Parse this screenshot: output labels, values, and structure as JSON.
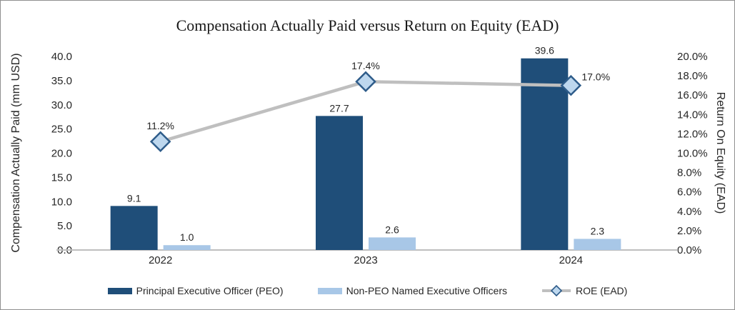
{
  "chart_data": {
    "type": "combo_bar_line",
    "title": "Compensation Actually Paid versus Return on Equity (EAD)",
    "categories": [
      "2022",
      "2023",
      "2024"
    ],
    "series": [
      {
        "name": "Principal Executive Officer (PEO)",
        "chart_type": "bar",
        "axis": "left",
        "color": "#1F4E79",
        "values": [
          9.1,
          27.7,
          39.6
        ],
        "data_labels": [
          "9.1",
          "27.7",
          "39.6"
        ]
      },
      {
        "name": "Non-PEO Named Executive Officers",
        "chart_type": "bar",
        "axis": "left",
        "color": "#A8C7E7",
        "values": [
          1.0,
          2.6,
          2.3
        ],
        "data_labels": [
          "1.0",
          "2.6",
          "2.3"
        ]
      },
      {
        "name": "ROE (EAD)",
        "chart_type": "line",
        "axis": "right",
        "line_color": "#BFBFBF",
        "marker_fill": "#BDD7EE",
        "marker_border": "#2E5C8A",
        "values": [
          11.2,
          17.4,
          17.0
        ],
        "data_labels": [
          "11.2%",
          "17.4%",
          "17.0%"
        ],
        "label_positions": [
          "above",
          "above",
          "right"
        ]
      }
    ],
    "left_axis": {
      "title": "Compensation Actually Paid (mm USD)",
      "min": 0,
      "max": 40,
      "step": 5,
      "tick_labels": [
        "0.0",
        "5.0",
        "10.0",
        "15.0",
        "20.0",
        "25.0",
        "30.0",
        "35.0",
        "40.0"
      ]
    },
    "right_axis": {
      "title": "Return On Equity (EAD)",
      "min": 0,
      "max": 20,
      "step": 2,
      "tick_labels": [
        "0.0%",
        "2.0%",
        "4.0%",
        "6.0%",
        "8.0%",
        "10.0%",
        "12.0%",
        "14.0%",
        "16.0%",
        "18.0%",
        "20.0%"
      ]
    },
    "axis_line_color": "#BFBFBF",
    "text_color": "#262626",
    "grid": false,
    "legend_position": "bottom"
  }
}
